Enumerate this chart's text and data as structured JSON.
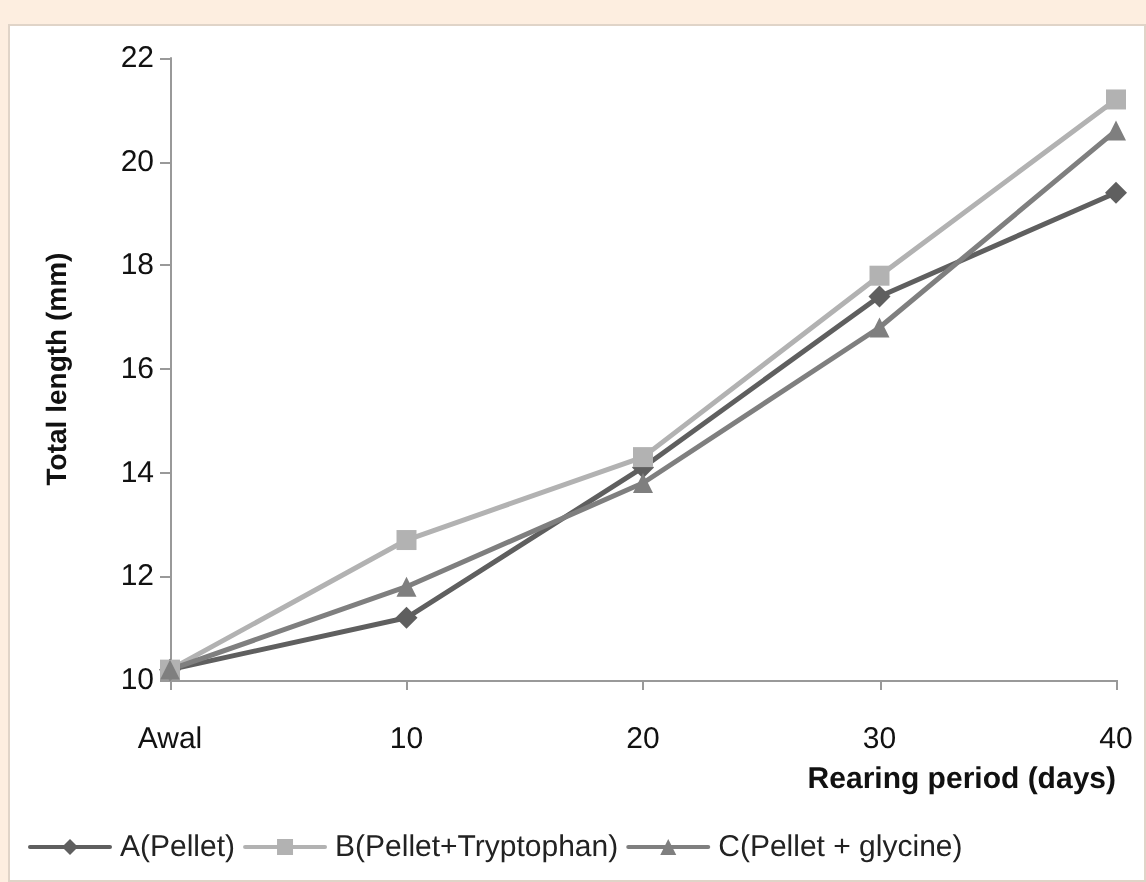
{
  "chart_data": {
    "type": "line",
    "xlabel": "Rearing period (days)",
    "ylabel": "Total length (mm)",
    "categories": [
      "Awal",
      "10",
      "20",
      "30",
      "40"
    ],
    "series": [
      {
        "name": "A(Pellet)",
        "color": "#5f5f5f",
        "marker": "diamond",
        "values": [
          10.2,
          11.2,
          14.1,
          17.4,
          19.4
        ]
      },
      {
        "name": "B(Pellet+Tryptophan)",
        "color": "#b2b2b2",
        "marker": "square",
        "values": [
          10.2,
          12.7,
          14.3,
          17.8,
          21.2
        ]
      },
      {
        "name": "C(Pellet + glycine)",
        "color": "#7f7f7f",
        "marker": "triangle",
        "values": [
          10.2,
          11.8,
          13.8,
          16.8,
          20.6
        ]
      }
    ],
    "ylim": [
      10,
      22
    ],
    "yticks": [
      10,
      12,
      14,
      16,
      18,
      20,
      22
    ],
    "grid": false,
    "legend": "bottom"
  }
}
